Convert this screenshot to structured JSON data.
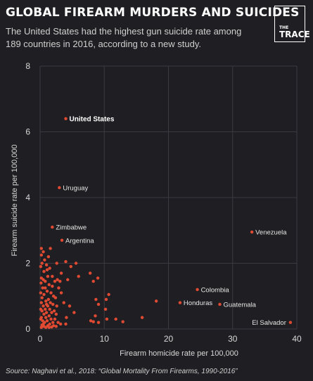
{
  "header": {
    "title": "GLOBAL FIREARM MURDERS AND SUICIDES",
    "subtitle": "The United States had the highest gun suicide rate among 189 countries in 2016, according to a new study.",
    "logo_line1": "THE",
    "logo_line2": "TRACE"
  },
  "source": "Source: Naghavi et al., 2018: “Global Mortality From Firearms, 1990-2016”",
  "colors": {
    "background": "#1f1f23",
    "point": "#e04a32",
    "grid": "#3a3a40"
  },
  "chart_data": {
    "type": "scatter",
    "title": "GLOBAL FIREARM MURDERS AND SUICIDES",
    "xlabel": "Firearm homicide rate per 100,000",
    "ylabel": "Firearm suicide rate per 100,000",
    "xlim": [
      0,
      40
    ],
    "ylim": [
      0,
      8
    ],
    "xticks": [
      0,
      10,
      20,
      30,
      40
    ],
    "yticks": [
      0,
      2,
      4,
      6,
      8
    ],
    "grid": true,
    "labeled_points": [
      {
        "label": "United States",
        "x": 4.0,
        "y": 6.4,
        "highlight": true
      },
      {
        "label": "Uruguay",
        "x": 3.0,
        "y": 4.3
      },
      {
        "label": "Zimbabwe",
        "x": 1.9,
        "y": 3.1
      },
      {
        "label": "Argentina",
        "x": 3.4,
        "y": 2.7
      },
      {
        "label": "Venezuela",
        "x": 33.0,
        "y": 2.95
      },
      {
        "label": "Colombia",
        "x": 24.5,
        "y": 1.2
      },
      {
        "label": "Honduras",
        "x": 21.8,
        "y": 0.8
      },
      {
        "label": "Guatemala",
        "x": 28.0,
        "y": 0.75
      },
      {
        "label": "El Salvador",
        "x": 39.0,
        "y": 0.2
      }
    ],
    "points": [
      [
        0.2,
        2.45
      ],
      [
        0.5,
        2.35
      ],
      [
        1.3,
        2.2
      ],
      [
        1.6,
        2.45
      ],
      [
        0.3,
        2.0
      ],
      [
        1.0,
        1.95
      ],
      [
        0.6,
        1.75
      ],
      [
        1.5,
        1.85
      ],
      [
        1.2,
        1.6
      ],
      [
        0.2,
        1.55
      ],
      [
        0.8,
        1.45
      ],
      [
        1.4,
        1.35
      ],
      [
        1.9,
        1.3
      ],
      [
        0.4,
        1.25
      ],
      [
        1.1,
        1.15
      ],
      [
        1.7,
        1.1
      ],
      [
        2.1,
        1.0
      ],
      [
        0.6,
        1.05
      ],
      [
        0.3,
        0.95
      ],
      [
        1.3,
        0.9
      ],
      [
        2.4,
        0.95
      ],
      [
        0.9,
        0.85
      ],
      [
        1.6,
        0.8
      ],
      [
        0.2,
        0.8
      ],
      [
        2.0,
        0.75
      ],
      [
        0.5,
        0.7
      ],
      [
        1.2,
        0.7
      ],
      [
        2.6,
        0.7
      ],
      [
        0.8,
        0.6
      ],
      [
        1.5,
        0.6
      ],
      [
        0.3,
        0.55
      ],
      [
        2.2,
        0.55
      ],
      [
        1.0,
        0.5
      ],
      [
        1.8,
        0.5
      ],
      [
        0.6,
        0.45
      ],
      [
        1.4,
        0.4
      ],
      [
        2.5,
        0.45
      ],
      [
        0.2,
        0.35
      ],
      [
        0.9,
        0.35
      ],
      [
        1.7,
        0.3
      ],
      [
        2.3,
        0.3
      ],
      [
        0.4,
        0.25
      ],
      [
        1.1,
        0.25
      ],
      [
        2.0,
        0.2
      ],
      [
        0.7,
        0.2
      ],
      [
        1.5,
        0.15
      ],
      [
        2.8,
        0.2
      ],
      [
        0.3,
        0.12
      ],
      [
        1.2,
        0.1
      ],
      [
        2.1,
        0.1
      ],
      [
        0.6,
        0.08
      ],
      [
        1.8,
        0.06
      ],
      [
        0.9,
        0.05
      ],
      [
        2.5,
        0.08
      ],
      [
        0.2,
        0.05
      ],
      [
        1.4,
        0.05
      ],
      [
        3.2,
        0.15
      ],
      [
        0.5,
        1.5
      ],
      [
        1.9,
        1.6
      ],
      [
        1.1,
        1.8
      ],
      [
        0.7,
        2.1
      ],
      [
        2.3,
        1.45
      ],
      [
        2.7,
        1.5
      ],
      [
        2.9,
        1.25
      ],
      [
        3.1,
        1.45
      ],
      [
        3.3,
        1.1
      ],
      [
        2.6,
        2.0
      ],
      [
        4.8,
        1.9
      ],
      [
        5.6,
        2.0
      ],
      [
        6.0,
        1.6
      ],
      [
        4.3,
        1.5
      ],
      [
        3.7,
        0.8
      ],
      [
        4.6,
        0.7
      ],
      [
        4.1,
        0.35
      ],
      [
        4.0,
        0.15
      ],
      [
        5.3,
        0.5
      ],
      [
        3.3,
        1.7
      ],
      [
        4.0,
        2.05
      ],
      [
        7.8,
        1.7
      ],
      [
        8.3,
        1.45
      ],
      [
        9.0,
        1.55
      ],
      [
        10.7,
        1.05
      ],
      [
        10.3,
        0.9
      ],
      [
        8.7,
        0.9
      ],
      [
        9.1,
        0.75
      ],
      [
        10.2,
        0.6
      ],
      [
        8.6,
        0.4
      ],
      [
        10.4,
        0.3
      ],
      [
        7.9,
        0.25
      ],
      [
        8.3,
        0.22
      ],
      [
        9.1,
        0.2
      ],
      [
        11.8,
        0.3
      ],
      [
        12.9,
        0.22
      ],
      [
        15.9,
        0.35
      ],
      [
        18.1,
        0.85
      ],
      [
        0.1,
        0.6
      ],
      [
        0.1,
        1.1
      ],
      [
        0.1,
        1.9
      ],
      [
        0.1,
        0.3
      ],
      [
        0.15,
        1.4
      ],
      [
        0.2,
        2.25
      ],
      [
        0.8,
        1.25
      ],
      [
        0.5,
        0.15
      ],
      [
        1.0,
        0.75
      ]
    ]
  }
}
